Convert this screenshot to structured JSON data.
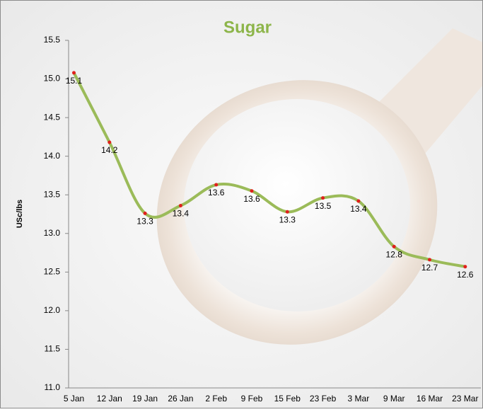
{
  "chart_data": {
    "type": "line",
    "title": "Sugar",
    "y_label": "USc/lbs",
    "categories": [
      "5 Jan",
      "12 Jan",
      "19 Jan",
      "26 Jan",
      "2 Feb",
      "9 Feb",
      "15 Feb",
      "23 Feb",
      "3 Mar",
      "9 Mar",
      "16 Mar",
      "23 Mar"
    ],
    "values": [
      15.08,
      14.18,
      13.26,
      13.36,
      13.63,
      13.55,
      13.28,
      13.46,
      13.42,
      12.83,
      12.66,
      12.57
    ],
    "value_labels": [
      "15.1",
      "14.2",
      "13.3",
      "13.4",
      "13.6",
      "13.6",
      "13.3",
      "13.5",
      "13.4",
      "12.8",
      "12.7",
      "12.6"
    ],
    "color": "#9bbb59",
    "marker_color": "#e0201c",
    "smooth": true,
    "ylim": [
      11.0,
      15.5
    ],
    "yticks": [
      {
        "value": 11.0,
        "label": "11.0"
      },
      11.5,
      {
        "value": 12.0,
        "label": "12.0"
      },
      12.5,
      {
        "value": 13.0,
        "label": "13.0"
      },
      13.5,
      {
        "value": 14.0,
        "label": "14.0"
      },
      14.5,
      {
        "value": 15.0,
        "label": "15.0"
      },
      15.5
    ],
    "grid": false
  }
}
